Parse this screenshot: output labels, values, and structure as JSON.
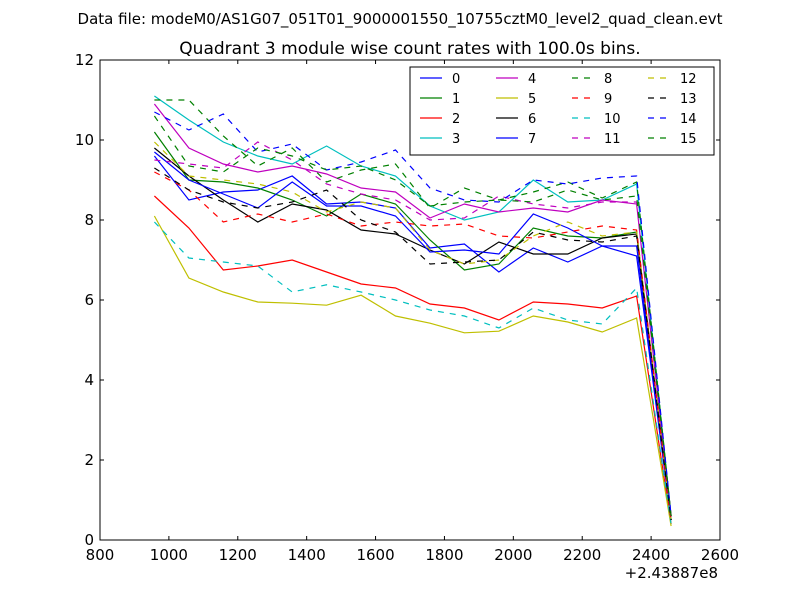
{
  "figure": {
    "suptitle": "Data file: modeM0/AS1G07_051T01_9000001550_10755cztM0_level2_quad_clean.evt"
  },
  "chart_data": {
    "type": "line",
    "title": "Quadrant 3 module wise count rates with 100.0s bins.",
    "xlabel": "",
    "ylabel": "",
    "x_offset_label": "+2.43887e8",
    "xlim": [
      800,
      2600
    ],
    "ylim": [
      0,
      12
    ],
    "xticks": [
      800,
      1000,
      1200,
      1400,
      1600,
      1800,
      2000,
      2200,
      2400,
      2600
    ],
    "yticks": [
      0,
      2,
      4,
      6,
      8,
      10,
      12
    ],
    "legend_position": "top-right",
    "x": [
      958,
      1058,
      1158,
      1258,
      1358,
      1458,
      1558,
      1658,
      1758,
      1858,
      1958,
      2058,
      2158,
      2258,
      2358,
      2458
    ],
    "series": [
      {
        "name": "0",
        "color": "#0000ff",
        "dash": "solid",
        "values": [
          9.6,
          8.5,
          8.7,
          8.75,
          9.1,
          8.4,
          8.45,
          8.3,
          7.3,
          7.4,
          6.7,
          7.3,
          6.95,
          7.35,
          7.1,
          0.5
        ]
      },
      {
        "name": "1",
        "color": "#008000",
        "dash": "solid",
        "values": [
          10.2,
          9.0,
          8.95,
          8.8,
          8.5,
          8.1,
          8.65,
          8.4,
          7.5,
          6.75,
          6.9,
          7.8,
          7.6,
          7.55,
          7.7,
          0.5
        ]
      },
      {
        "name": "2",
        "color": "#ff0000",
        "dash": "solid",
        "values": [
          8.6,
          7.8,
          6.75,
          6.85,
          7.0,
          6.7,
          6.4,
          6.3,
          5.9,
          5.8,
          5.5,
          5.95,
          5.9,
          5.8,
          6.1,
          0.4
        ]
      },
      {
        "name": "3",
        "color": "#00bfbf",
        "dash": "solid",
        "values": [
          11.1,
          10.5,
          9.95,
          9.6,
          9.4,
          9.85,
          9.35,
          9.1,
          8.35,
          8.0,
          8.2,
          9.0,
          8.45,
          8.5,
          8.9,
          0.6
        ]
      },
      {
        "name": "4",
        "color": "#bf00bf",
        "dash": "solid",
        "values": [
          10.9,
          9.8,
          9.4,
          9.2,
          9.35,
          9.15,
          8.8,
          8.7,
          8.05,
          8.4,
          8.2,
          8.3,
          8.2,
          8.5,
          8.4,
          0.6
        ]
      },
      {
        "name": "5",
        "color": "#bfbf00",
        "dash": "solid",
        "values": [
          8.1,
          6.55,
          6.2,
          5.95,
          5.92,
          5.87,
          6.12,
          5.6,
          5.42,
          5.18,
          5.22,
          5.6,
          5.45,
          5.2,
          5.55,
          0.35
        ]
      },
      {
        "name": "6",
        "color": "#000000",
        "dash": "solid",
        "values": [
          9.8,
          9.1,
          8.5,
          7.95,
          8.4,
          8.25,
          7.75,
          7.65,
          7.25,
          6.9,
          7.45,
          7.15,
          7.15,
          7.55,
          7.65,
          0.5
        ]
      },
      {
        "name": "7",
        "color": "#0000ff",
        "dash": "solid",
        "values": [
          9.7,
          9.0,
          8.65,
          8.3,
          8.95,
          8.35,
          8.35,
          8.1,
          7.2,
          7.25,
          7.15,
          8.15,
          7.8,
          7.35,
          7.35,
          0.5
        ]
      },
      {
        "name": "8",
        "color": "#008000",
        "dash": "dashed",
        "values": [
          11.0,
          11.0,
          10.1,
          9.35,
          9.8,
          8.95,
          9.25,
          9.4,
          8.3,
          8.8,
          8.5,
          8.7,
          8.95,
          8.55,
          8.95,
          0.6
        ]
      },
      {
        "name": "9",
        "color": "#ff0000",
        "dash": "dashed",
        "values": [
          9.2,
          8.75,
          7.95,
          8.15,
          7.95,
          8.15,
          7.85,
          7.95,
          7.85,
          7.9,
          7.6,
          7.55,
          7.7,
          7.85,
          7.75,
          0.5
        ]
      },
      {
        "name": "10",
        "color": "#00bfbf",
        "dash": "dashed",
        "values": [
          7.95,
          7.05,
          6.95,
          6.85,
          6.2,
          6.38,
          6.2,
          6.0,
          5.75,
          5.6,
          5.3,
          5.8,
          5.5,
          5.4,
          6.3,
          0.4
        ]
      },
      {
        "name": "11",
        "color": "#bf00bf",
        "dash": "dashed",
        "values": [
          9.5,
          9.4,
          9.3,
          9.95,
          9.5,
          8.9,
          8.65,
          8.5,
          8.0,
          8.05,
          8.6,
          8.4,
          8.3,
          8.45,
          8.45,
          0.6
        ]
      },
      {
        "name": "12",
        "color": "#bfbf00",
        "dash": "dashed",
        "values": [
          9.95,
          9.1,
          9.0,
          8.9,
          8.7,
          8.2,
          8.45,
          8.3,
          7.25,
          6.9,
          7.0,
          7.6,
          7.95,
          7.6,
          7.7,
          0.5
        ]
      },
      {
        "name": "13",
        "color": "#000000",
        "dash": "dashed",
        "values": [
          9.3,
          8.75,
          8.45,
          8.3,
          8.45,
          8.75,
          8.0,
          7.7,
          6.9,
          6.95,
          7.0,
          7.7,
          7.5,
          7.45,
          7.6,
          0.5
        ]
      },
      {
        "name": "14",
        "color": "#0000ff",
        "dash": "dashed",
        "values": [
          10.7,
          10.25,
          10.65,
          9.7,
          9.9,
          9.25,
          9.45,
          9.75,
          8.8,
          8.5,
          8.45,
          9.0,
          8.9,
          9.05,
          9.1,
          0.6
        ]
      },
      {
        "name": "15",
        "color": "#008000",
        "dash": "dashed",
        "values": [
          10.6,
          9.35,
          9.2,
          9.8,
          9.6,
          9.25,
          9.35,
          9.0,
          8.35,
          8.45,
          8.5,
          8.45,
          8.75,
          8.5,
          8.6,
          0.6
        ]
      }
    ]
  }
}
